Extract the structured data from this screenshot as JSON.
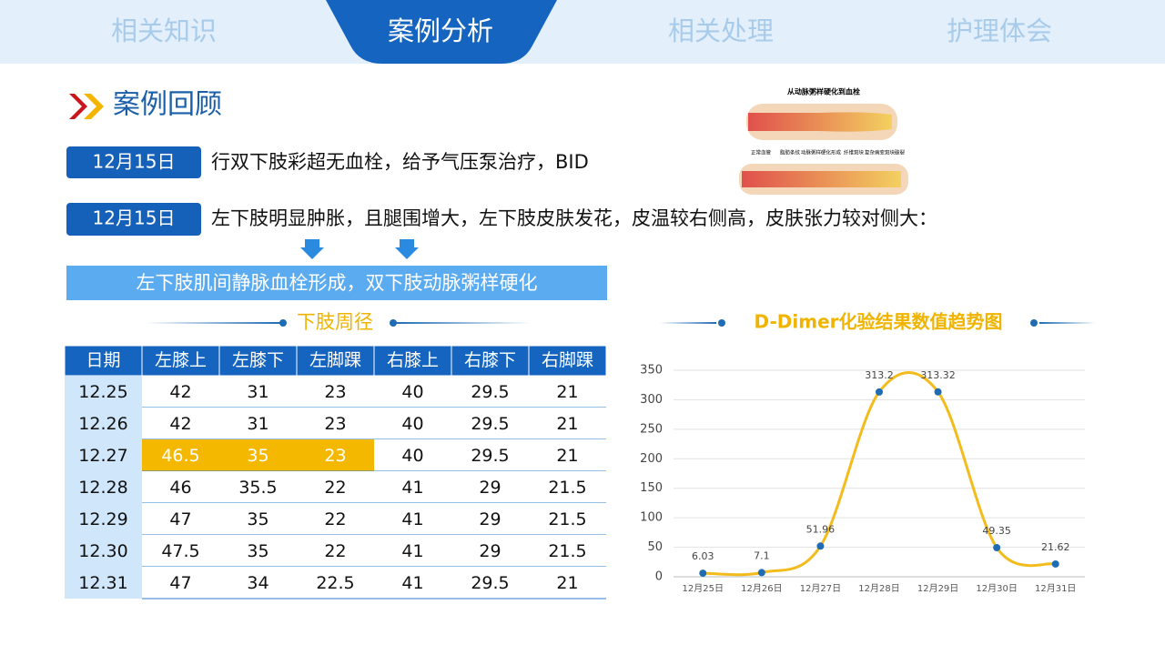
{
  "nav": {
    "tabs": [
      "相关知识",
      "案例分析",
      "相关处理",
      "护理体会"
    ]
  },
  "section_title": "案例回顾",
  "image": {
    "title": "从动脉粥样硬化到血栓",
    "labels": [
      "正常血管",
      "脂肪条纹",
      "动脉粥样硬化形成",
      "纤维斑块",
      "复杂病变斑块破裂"
    ]
  },
  "records": [
    {
      "date": "12月15日",
      "text": "行双下肢彩超无血栓，给予气压泵治疗，BID"
    },
    {
      "date": "12月15日",
      "text": "左下肢明显肿胀，且腿围增大，左下肢皮肤发花，皮温较右侧高，皮肤张力较对侧大："
    }
  ],
  "diagnosis": "左下肢肌间静脉血栓形成，双下肢动脉粥样硬化",
  "table": {
    "title": "下肢周径",
    "header": [
      "日期",
      "左膝上",
      "左膝下",
      "左脚踝",
      "右膝上",
      "右膝下",
      "右脚踝"
    ],
    "rows": [
      [
        "12.25",
        "42",
        "31",
        "23",
        "40",
        "29.5",
        "21"
      ],
      [
        "12.26",
        "42",
        "31",
        "23",
        "40",
        "29.5",
        "21"
      ],
      [
        "12.27",
        "46.5",
        "35",
        "23",
        "40",
        "29.5",
        "21"
      ],
      [
        "12.28",
        "46",
        "35.5",
        "22",
        "41",
        "29",
        "21.5"
      ],
      [
        "12.29",
        "47",
        "35",
        "22",
        "41",
        "29",
        "21.5"
      ],
      [
        "12.30",
        "47.5",
        "35",
        "22",
        "41",
        "29",
        "21.5"
      ],
      [
        "12.31",
        "47",
        "34",
        "22.5",
        "41",
        "29.5",
        "21"
      ]
    ]
  },
  "chart_data": {
    "type": "line",
    "title": "D-Dimer化验结果数值趋势图",
    "categories": [
      "12月25日",
      "12月26日",
      "12月27日",
      "12月28日",
      "12月29日",
      "12月30日",
      "12月31日"
    ],
    "values": [
      6.03,
      7.1,
      51.96,
      313.2,
      313.32,
      49.35,
      21.62
    ],
    "color": "#f2bc1c",
    "marker_color": "#1f6cb4",
    "ylim": [
      0,
      350
    ],
    "yticks": [
      0,
      50,
      100,
      150,
      200,
      250,
      300,
      350
    ],
    "grid": true,
    "smooth": true
  }
}
